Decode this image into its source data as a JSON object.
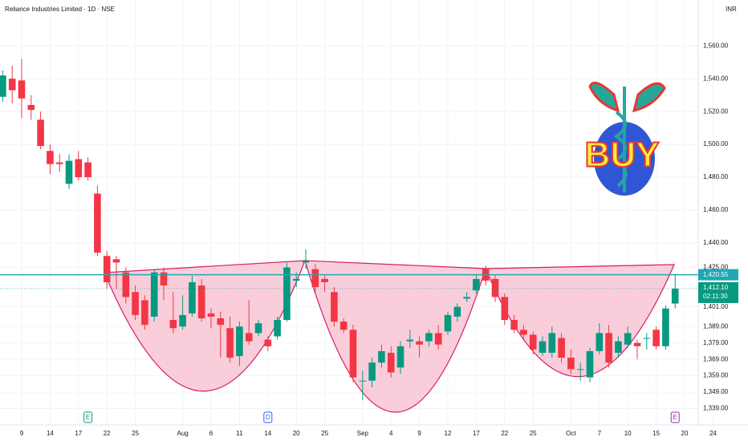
{
  "chart_data": {
    "type": "candlestick",
    "title": "Reliance Industries Limited · 1D · NSE",
    "currency": "INR",
    "categories": [
      null,
      null,
      "9",
      null,
      null,
      "14",
      null,
      null,
      "17",
      null,
      null,
      "22",
      null,
      null,
      "25",
      null,
      null,
      null,
      null,
      "Aug",
      null,
      null,
      "6",
      null,
      null,
      "11",
      null,
      null,
      "14",
      null,
      null,
      "20",
      null,
      null,
      "25",
      null,
      null,
      null,
      "Sep",
      null,
      null,
      "4",
      null,
      null,
      "9",
      null,
      null,
      "12",
      null,
      null,
      "17",
      null,
      null,
      "22",
      null,
      null,
      "25",
      null,
      null,
      null,
      "Oct",
      null,
      null,
      "7",
      null,
      null,
      "10",
      null,
      null,
      "15",
      null,
      null,
      "20",
      null,
      null,
      "24"
    ],
    "open": [
      1529,
      1540,
      1539,
      1524,
      1515,
      1496,
      1489,
      1476,
      1491,
      1489,
      1470,
      1432,
      1430,
      1422,
      1410,
      1405,
      1395,
      1422,
      1393,
      1389,
      1397,
      1414,
      1397,
      1394,
      1388,
      1371,
      1385,
      1385,
      1381,
      1383,
      1393,
      1417,
      1428,
      1424,
      1418,
      1410,
      1392,
      1387,
      1356,
      1356,
      1367,
      1373,
      1364,
      1380,
      1380,
      1380,
      1385,
      1386,
      1395,
      1406,
      1411,
      1424,
      1418,
      1407,
      1393,
      1387,
      1384,
      1373,
      1373,
      1382,
      1370,
      1363,
      1358,
      1374,
      1385,
      1373,
      1378,
      1379,
      1382,
      1387,
      1377,
      1403,
      null,
      null,
      null,
      null
    ],
    "high": [
      1545,
      1548,
      1552,
      1530,
      1520,
      1500,
      1494,
      1494,
      1496,
      1492,
      1475,
      1435,
      1432,
      1425,
      1414,
      1408,
      1424,
      1425,
      1410,
      1408,
      1420,
      1418,
      1400,
      1398,
      1395,
      1392,
      1405,
      1393,
      1383,
      1395,
      1428,
      1422,
      1436,
      1427,
      1420,
      1413,
      1394,
      1390,
      1362,
      1370,
      1378,
      1377,
      1380,
      1387,
      1383,
      1387,
      1390,
      1398,
      1403,
      1410,
      1421,
      1426,
      1420,
      1409,
      1396,
      1390,
      1386,
      1383,
      1389,
      1385,
      1375,
      1367,
      1376,
      1391,
      1390,
      1383,
      1389,
      1381,
      1385,
      1389,
      1402,
      1421,
      null,
      null,
      null,
      null
    ],
    "low": [
      1526,
      1525,
      1516,
      1515,
      1497,
      1482,
      1483,
      1473,
      1478,
      1478,
      1432,
      1412,
      1412,
      1403,
      1393,
      1387,
      1392,
      1405,
      1385,
      1387,
      1395,
      1392,
      1388,
      1370,
      1367,
      1365,
      1378,
      1383,
      1374,
      1381,
      1392,
      1413,
      1424,
      1410,
      1410,
      1389,
      1385,
      1355,
      1344,
      1352,
      1364,
      1358,
      1360,
      1376,
      1370,
      1377,
      1375,
      1384,
      1392,
      1404,
      1409,
      1414,
      1404,
      1390,
      1385,
      1381,
      1372,
      1371,
      1370,
      1367,
      1360,
      1356,
      1355,
      1372,
      1364,
      1370,
      1376,
      1369,
      1375,
      1375,
      1375,
      1400,
      null,
      null,
      null,
      null
    ],
    "close": [
      1542,
      1533,
      1528,
      1521,
      1499,
      1488,
      1488,
      1490,
      1480,
      1480,
      1434,
      1416,
      1428,
      1407,
      1396,
      1390,
      1422,
      1414,
      1388,
      1396,
      1416,
      1394,
      1395,
      1390,
      1370,
      1389,
      1380,
      1391,
      1377,
      1393,
      1425,
      1418,
      1429,
      1413,
      1416,
      1392,
      1387,
      1358,
      1356,
      1367,
      1374,
      1361,
      1377,
      1381,
      1378,
      1385,
      1378,
      1396,
      1401,
      1407,
      1418,
      1417,
      1407,
      1393,
      1387,
      1384,
      1375,
      1380,
      1385,
      1370,
      1363,
      1363,
      1374,
      1385,
      1367,
      1380,
      1385,
      1377,
      1382,
      1377,
      1400,
      1412.1,
      null,
      null,
      null,
      null
    ],
    "up_color": "#089981",
    "down_color": "#f23645",
    "ylim": [
      1329,
      1588
    ],
    "yticks": [
      {
        "value": 1560,
        "label": "1,560.00"
      },
      {
        "value": 1540,
        "label": "1,540.00"
      },
      {
        "value": 1520,
        "label": "1,520.00"
      },
      {
        "value": 1500,
        "label": "1,500.00"
      },
      {
        "value": 1480,
        "label": "1,480.00"
      },
      {
        "value": 1460,
        "label": "1,460.00"
      },
      {
        "value": 1440,
        "label": "1,440.00"
      },
      {
        "value": 1425,
        "label": "1,425.00"
      },
      {
        "value": 1401,
        "label": "1,401.00"
      },
      {
        "value": 1389,
        "label": "1,389.00"
      },
      {
        "value": 1379,
        "label": "1,379.00"
      },
      {
        "value": 1369,
        "label": "1,369.00"
      },
      {
        "value": 1359,
        "label": "1,359.00"
      },
      {
        "value": 1349,
        "label": "1,349.00"
      },
      {
        "value": 1339,
        "label": "1,339.00"
      }
    ],
    "grid": true,
    "resistance": {
      "value": 1420.55,
      "label": "1,420.55",
      "color": "#22a6b3"
    },
    "last_price": {
      "value": 1412.1,
      "label": "1,412.10",
      "countdown": "02:11:30"
    },
    "events": [
      {
        "label": "E",
        "x": 9,
        "color": "#089981"
      },
      {
        "label": "D",
        "x": 28,
        "color": "#2962ff"
      },
      {
        "label": "E",
        "x": 71,
        "color": "#9c27b0"
      }
    ],
    "sticker_text": "BUY"
  }
}
